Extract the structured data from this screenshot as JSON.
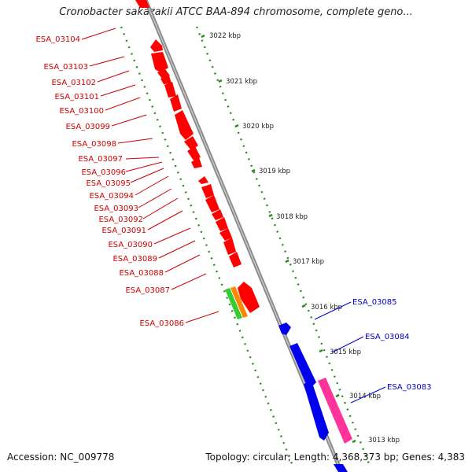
{
  "title": "Cronobacter sakazakii ATCC BAA-894 chromosome, complete geno...",
  "footer": {
    "accession": "Accession: NC_009778",
    "topology": "Topology: circular; Length: 4,368,373 bp; Genes: 4,383"
  },
  "colors": {
    "forward_gene": "#ff0000",
    "reverse_gene": "#0000ee",
    "backbone": "#8a8a8a",
    "ticks": "#2e8b22",
    "forward_label": "#cc0000",
    "reverse_label": "#0000cc",
    "gene_green": "#33cc33",
    "gene_orange": "#ff8800",
    "gene_pink": "#ff3399"
  },
  "kbp_ticks": [
    "3022 kbp",
    "3021 kbp",
    "3020 kbp",
    "3019 kbp",
    "3018 kbp",
    "3017 kbp",
    "3016 kbp",
    "3015 kbp",
    "3014 kbp",
    "3013 kbp"
  ],
  "forward_genes": [
    "ESA_03104",
    "ESA_03103",
    "ESA_03102",
    "ESA_03101",
    "ESA_03100",
    "ESA_03099",
    "ESA_03098",
    "ESA_03097",
    "ESA_03096",
    "ESA_03095",
    "ESA_03094",
    "ESA_03093",
    "ESA_03092",
    "ESA_03091",
    "ESA_03090",
    "ESA_03089",
    "ESA_03088",
    "ESA_03087",
    "ESA_03086"
  ],
  "reverse_genes": [
    "ESA_03085",
    "ESA_03084",
    "ESA_03083"
  ]
}
